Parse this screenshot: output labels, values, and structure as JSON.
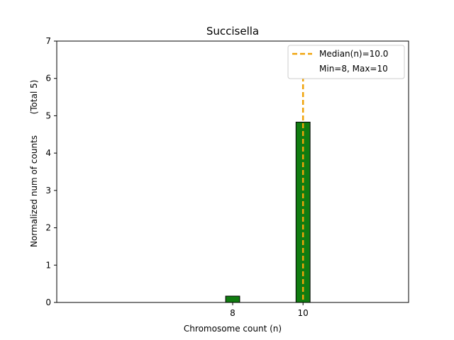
{
  "chart_data": {
    "type": "bar",
    "title": "Succisella",
    "xlabel": "Chromosome count (n)",
    "ylabel": "Normalized num of counts",
    "ylabel_total": "(Total 5)",
    "xlim": [
      3,
      13
    ],
    "ylim": [
      0,
      7
    ],
    "xticks": [
      8,
      10
    ],
    "yticks": [
      0,
      1,
      2,
      3,
      4,
      5,
      6,
      7
    ],
    "bar_width": 0.4,
    "bars": [
      {
        "x": 8,
        "value": 0.17
      },
      {
        "x": 10,
        "value": 4.83
      }
    ],
    "median_line": {
      "x": 10.0,
      "label": "Median(n)=10.0"
    },
    "legend": {
      "placement": "top-right",
      "entries": [
        "Median(n)=10.0",
        "Min=8, Max=10"
      ]
    },
    "colors": {
      "bar_fill": "#107C10",
      "bar_edge": "#000000",
      "median": "#F0A30A"
    }
  }
}
